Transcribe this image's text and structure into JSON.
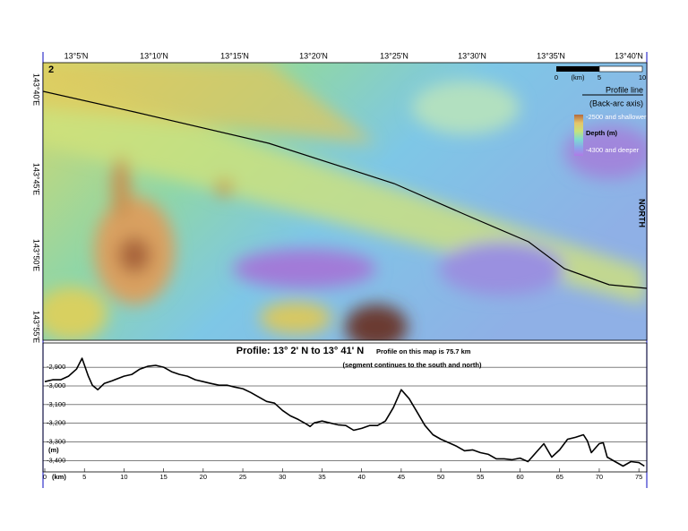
{
  "map": {
    "panel": "2",
    "lat_labels": [
      "13°5'N",
      "13°10'N",
      "13°15'N",
      "13°20'N",
      "13°25'N",
      "13°30'N",
      "13°35'N",
      "13°40'N"
    ],
    "lon_labels": [
      "143°40'E",
      "143°45'E",
      "143°50'E",
      "143°55'E"
    ],
    "scale": {
      "ticks": [
        "0",
        "5",
        "10"
      ],
      "unit": "(km)"
    },
    "legend": {
      "line": "Profile line",
      "line_sub": "(Back-arc axis)",
      "shallow": "-2500 and shallower",
      "title": "Depth (m)",
      "deep": "-4300 and deeper"
    },
    "north": "NORTH"
  },
  "chart_data": {
    "type": "line",
    "title": "Profile:  13° 2' N to 13° 41' N",
    "note": "Profile on this map is 75.7 km",
    "subtitle": "(segment continues to the south and north)",
    "x_label": "(km)",
    "y_label": "(m)",
    "color": "#000000",
    "x": [
      0,
      1,
      2,
      3,
      4,
      4.7,
      5.5,
      6,
      6.7,
      7.5,
      8.5,
      10,
      11,
      12,
      13,
      14,
      15,
      16,
      17,
      18,
      19,
      20,
      21,
      22,
      23,
      24,
      25,
      26,
      27,
      28,
      29,
      30,
      31,
      32,
      33,
      33.5,
      34,
      35,
      36,
      37,
      38,
      39,
      40,
      41,
      42,
      43,
      44,
      45,
      46,
      47,
      48,
      49,
      50,
      51,
      52,
      53,
      54,
      55,
      56,
      57,
      58,
      59,
      60,
      61,
      62,
      63,
      64,
      65,
      66,
      67,
      68,
      68.5,
      69,
      70,
      70.5,
      71,
      72,
      73,
      74,
      75,
      75.7
    ],
    "values": [
      -2977,
      -2967,
      -2967,
      -2948,
      -2910,
      -2852,
      -2948,
      -2996,
      -3020,
      -2987,
      -2972,
      -2948,
      -2938,
      -2910,
      -2895,
      -2890,
      -2900,
      -2924,
      -2938,
      -2948,
      -2967,
      -2977,
      -2987,
      -2996,
      -2996,
      -3006,
      -3015,
      -3035,
      -3059,
      -3083,
      -3092,
      -3131,
      -3160,
      -3179,
      -3203,
      -3217,
      -3198,
      -3188,
      -3198,
      -3208,
      -3212,
      -3237,
      -3227,
      -3212,
      -3212,
      -3188,
      -3116,
      -3020,
      -3068,
      -3140,
      -3212,
      -3261,
      -3285,
      -3304,
      -3323,
      -3347,
      -3342,
      -3357,
      -3366,
      -3390,
      -3390,
      -3395,
      -3386,
      -3405,
      -3357,
      -3309,
      -3381,
      -3342,
      -3285,
      -3275,
      -3261,
      -3294,
      -3357,
      -3309,
      -3304,
      -3381,
      -3405,
      -3429,
      -3405,
      -3410,
      -3429
    ],
    "xlim": [
      0,
      76
    ],
    "ylim": [
      -3460,
      -2770
    ],
    "xticks": [
      0,
      5,
      10,
      15,
      20,
      25,
      30,
      35,
      40,
      45,
      50,
      55,
      60,
      65,
      70,
      75
    ],
    "yticks": [
      {
        "value": -2900,
        "label": "-2,900"
      },
      {
        "value": -3000,
        "label": "-3,000"
      },
      {
        "value": -3100,
        "label": "-3,100"
      },
      {
        "value": -3200,
        "label": "-3,200"
      },
      {
        "value": -3300,
        "label": "-3,300"
      },
      {
        "value": -3400,
        "label": "-3,400"
      }
    ],
    "grid": true
  }
}
